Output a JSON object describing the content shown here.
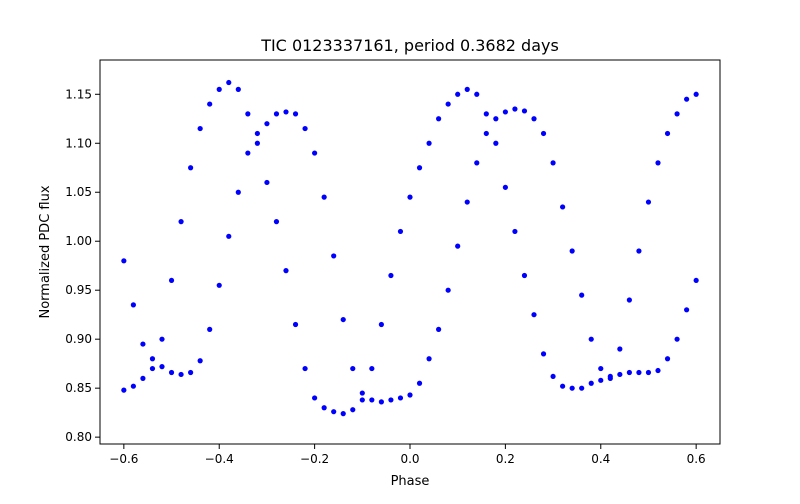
{
  "chart_data": {
    "type": "scatter",
    "title": "TIC 0123337161, period 0.3682 days",
    "xlabel": "Phase",
    "ylabel": "Normalized PDC flux",
    "xlim": [
      -0.65,
      0.65
    ],
    "ylim": [
      0.793,
      1.185
    ],
    "xticks": [
      -0.6,
      -0.4,
      -0.2,
      0.0,
      0.2,
      0.4,
      0.6
    ],
    "xtick_labels": [
      "−0.6",
      "−0.4",
      "−0.2",
      "0.0",
      "0.2",
      "0.4",
      "0.6"
    ],
    "yticks": [
      0.8,
      0.85,
      0.9,
      0.95,
      1.0,
      1.05,
      1.1,
      1.15
    ],
    "ytick_labels": [
      "0.80",
      "0.85",
      "0.90",
      "0.95",
      "1.00",
      "1.05",
      "1.10",
      "1.15"
    ],
    "grid": false,
    "legend": "none",
    "marker_color": "#0000ff",
    "series": [
      {
        "x": [
          -0.6,
          -0.58,
          -0.56,
          -0.54,
          -0.52,
          -0.5,
          -0.48,
          -0.46,
          -0.44,
          -0.42,
          -0.4,
          -0.38,
          -0.36,
          -0.34,
          -0.32,
          -0.3,
          -0.28,
          -0.26,
          -0.24,
          -0.22,
          -0.2,
          -0.18,
          -0.16,
          -0.14,
          -0.12,
          -0.1,
          -0.08,
          -0.06,
          -0.04,
          -0.02,
          0.0,
          0.02,
          0.04,
          0.06,
          0.08,
          0.1,
          0.12,
          0.14,
          0.16,
          0.18,
          0.2,
          0.22,
          0.24,
          0.26,
          0.28,
          0.3,
          0.32,
          0.34,
          0.36,
          0.38,
          0.4,
          0.42,
          0.44,
          0.46,
          0.48,
          0.5,
          0.52,
          0.54,
          0.56,
          0.58,
          0.6
        ],
        "y": [
          0.98,
          0.935,
          0.895,
          0.87,
          0.9,
          0.96,
          1.02,
          1.075,
          1.115,
          1.14,
          1.155,
          1.162,
          1.155,
          1.13,
          1.1,
          1.06,
          1.02,
          0.97,
          0.915,
          0.87,
          0.84,
          0.83,
          0.826,
          0.824,
          0.828,
          0.838,
          0.87,
          0.915,
          0.965,
          1.01,
          1.045,
          1.075,
          1.1,
          1.125,
          1.14,
          1.15,
          1.155,
          1.15,
          1.13,
          1.1,
          1.055,
          1.01,
          0.965,
          0.925,
          0.885,
          0.862,
          0.852,
          0.85,
          0.85,
          0.855,
          0.858,
          0.86,
          0.89,
          0.94,
          0.99,
          1.04,
          1.08,
          1.11,
          1.13,
          1.145,
          1.15
        ]
      },
      {
        "x": [
          -0.6,
          -0.58,
          -0.56,
          -0.54,
          -0.52,
          -0.5,
          -0.48,
          -0.46,
          -0.44,
          -0.42,
          -0.4,
          -0.38,
          -0.36,
          -0.34,
          -0.32,
          -0.3,
          -0.28,
          -0.26,
          -0.24,
          -0.22,
          -0.2,
          -0.18,
          -0.16,
          -0.14,
          -0.12,
          -0.1,
          -0.08,
          -0.06,
          -0.04,
          -0.02,
          0.0,
          0.02,
          0.04,
          0.06,
          0.08,
          0.1,
          0.12,
          0.14,
          0.16,
          0.18,
          0.2,
          0.22,
          0.24,
          0.26,
          0.28,
          0.3,
          0.32,
          0.34,
          0.36,
          0.38,
          0.4,
          0.42,
          0.44,
          0.46,
          0.48,
          0.5,
          0.52,
          0.54,
          0.56,
          0.58,
          0.6
        ],
        "y": [
          0.848,
          0.852,
          0.86,
          0.88,
          0.872,
          0.866,
          0.864,
          0.866,
          0.878,
          0.91,
          0.955,
          1.005,
          1.05,
          1.09,
          1.11,
          1.12,
          1.13,
          1.132,
          1.13,
          1.115,
          1.09,
          1.045,
          0.985,
          0.92,
          0.87,
          0.845,
          0.838,
          0.836,
          0.838,
          0.84,
          0.843,
          0.855,
          0.88,
          0.91,
          0.95,
          0.995,
          1.04,
          1.08,
          1.11,
          1.125,
          1.132,
          1.135,
          1.133,
          1.125,
          1.11,
          1.08,
          1.035,
          0.99,
          0.945,
          0.9,
          0.87,
          0.862,
          0.864,
          0.866,
          0.866,
          0.866,
          0.868,
          0.88,
          0.9,
          0.93,
          0.96
        ]
      }
    ]
  }
}
